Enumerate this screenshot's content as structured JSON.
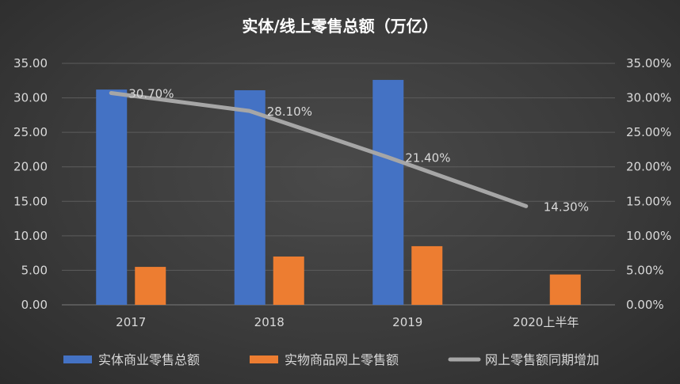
{
  "chart_data": {
    "type": "bar",
    "title": "实体/线上零售总额（万亿）",
    "categories": [
      "2017",
      "2018",
      "2019",
      "2020上半年"
    ],
    "series": [
      {
        "name": "实体商业零售总额",
        "type": "bar",
        "axis": "left",
        "color": "#4472c4",
        "values": [
          31.2,
          31.1,
          32.6,
          null
        ]
      },
      {
        "name": "实物商品网上零售额",
        "type": "bar",
        "axis": "left",
        "color": "#ed7d31",
        "values": [
          5.5,
          7.0,
          8.5,
          4.4
        ]
      },
      {
        "name": "网上零售额同期增加",
        "type": "line",
        "axis": "right",
        "color": "#a6a6a6",
        "values": [
          30.7,
          28.1,
          21.4,
          14.3
        ],
        "labels": [
          "30.70%",
          "28.10%",
          "21.40%",
          "14.30%"
        ]
      }
    ],
    "y_left": {
      "lim": [
        0,
        35
      ],
      "ticks": [
        "0.00",
        "5.00",
        "10.00",
        "15.00",
        "20.00",
        "25.00",
        "30.00",
        "35.00"
      ]
    },
    "y_right": {
      "lim": [
        0,
        35
      ],
      "ticks": [
        "0.00%",
        "5.00%",
        "10.00%",
        "15.00%",
        "20.00%",
        "25.00%",
        "30.00%",
        "35.00%"
      ]
    },
    "grid": true,
    "legend": "bottom"
  }
}
